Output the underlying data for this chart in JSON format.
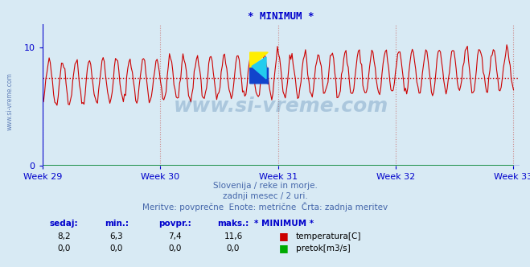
{
  "title": "* MINIMUM *",
  "bg_color": "#d8eaf4",
  "plot_bg_color": "#d8eaf4",
  "line_color_temp": "#cc0000",
  "line_color_flow": "#00aa00",
  "avg_line_color": "#cc0000",
  "grid_color": "#cc8888",
  "axis_color": "#0000cc",
  "text_color": "#4466aa",
  "ylim": [
    0,
    12
  ],
  "yticks": [
    0,
    10
  ],
  "xweeks": [
    29,
    30,
    31,
    32,
    33
  ],
  "avg_value": 7.4,
  "min_value": 6.3,
  "max_value": 11.6,
  "current_value": 8.2,
  "subtitle1": "Slovenija / reke in morje.",
  "subtitle2": "zadnji mesec / 2 uri.",
  "subtitle3": "Meritve: povprečne  Enote: metrične  Črta: zadnja meritev",
  "legend_label_temp": "temperatura[C]",
  "legend_label_flow": "pretok[m3/s]",
  "col_sedaj": "sedaj:",
  "col_min": "min.:",
  "col_povpr": "povpr.:",
  "col_maks": "maks.:",
  "col_name": "* MINIMUM *",
  "row1_vals": [
    "8,2",
    "6,3",
    "7,4",
    "11,6"
  ],
  "row2_vals": [
    "0,0",
    "0,0",
    "0,0",
    "0,0"
  ],
  "watermark": "www.si-vreme.com",
  "watermark_color": "#4477aa",
  "side_label": "www.si-vreme.com"
}
